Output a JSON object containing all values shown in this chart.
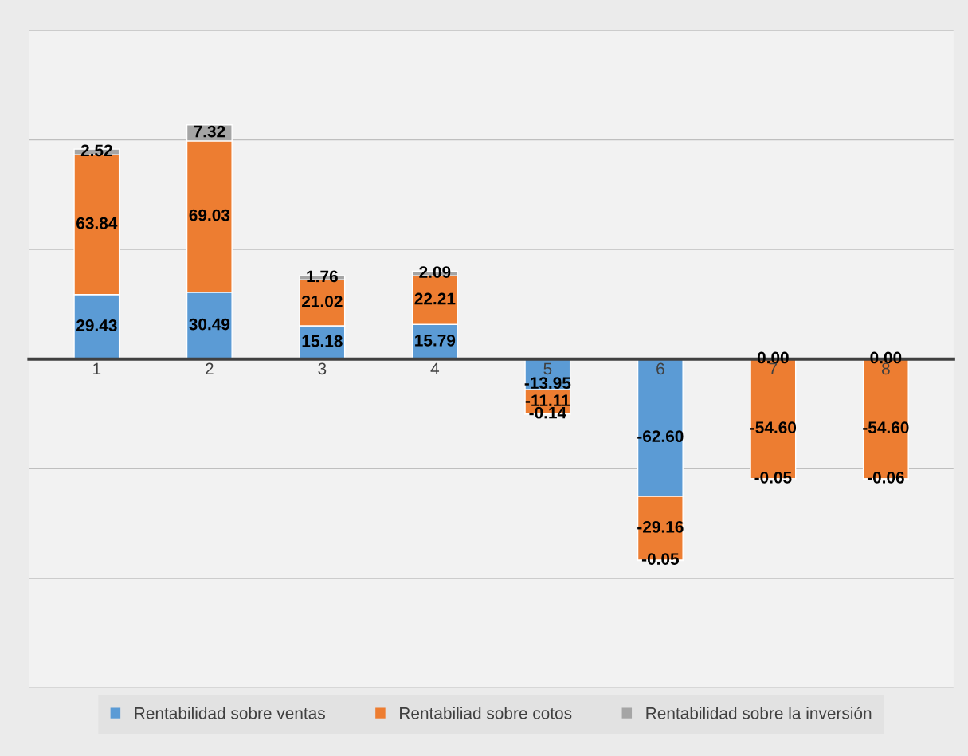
{
  "chart_data": {
    "type": "bar",
    "stacked": true,
    "categories": [
      "1",
      "2",
      "3",
      "4",
      "5",
      "6",
      "7",
      "8"
    ],
    "series": [
      {
        "name": "Rentabilidad sobre ventas",
        "color": "#5b9bd5",
        "values": [
          29.43,
          30.49,
          15.18,
          15.79,
          -13.95,
          -62.6,
          0.0,
          0.0
        ],
        "value_labels": [
          "29.43",
          "30.49",
          "15.18",
          "15.79",
          "-13.95",
          "-62.60",
          "0.00",
          "0.00"
        ]
      },
      {
        "name": "Rentabiliad sobre cotos",
        "color": "#ed7d31",
        "values": [
          63.84,
          69.03,
          21.02,
          22.21,
          -11.11,
          -29.16,
          -54.6,
          -54.6
        ],
        "value_labels": [
          "63.84",
          "69.03",
          "21.02",
          "22.21",
          "-11.11",
          "-29.16",
          "-54.60",
          "-54.60"
        ]
      },
      {
        "name": "Rentabilidad sobre la inversión",
        "color": "#a5a5a5",
        "values": [
          2.52,
          7.32,
          1.76,
          2.09,
          -0.14,
          -0.05,
          -0.05,
          -0.06
        ],
        "value_labels": [
          "2.52",
          "7.32",
          "1.76",
          "2.09",
          "-0.14",
          "-0.05",
          "-0.05",
          "-0.06"
        ]
      }
    ],
    "ylim": [
      -150,
      150
    ],
    "yticks": [
      {
        "value": -150,
        "label": null
      },
      {
        "value": -100,
        "label": null
      },
      {
        "value": -50,
        "label": null
      },
      {
        "value": 0,
        "label": null
      },
      {
        "value": 50,
        "label": null
      },
      {
        "value": 100,
        "label": null
      },
      {
        "value": 150,
        "label": null
      }
    ],
    "grid": "y",
    "legend": "bottom",
    "tick_labels": "x"
  }
}
